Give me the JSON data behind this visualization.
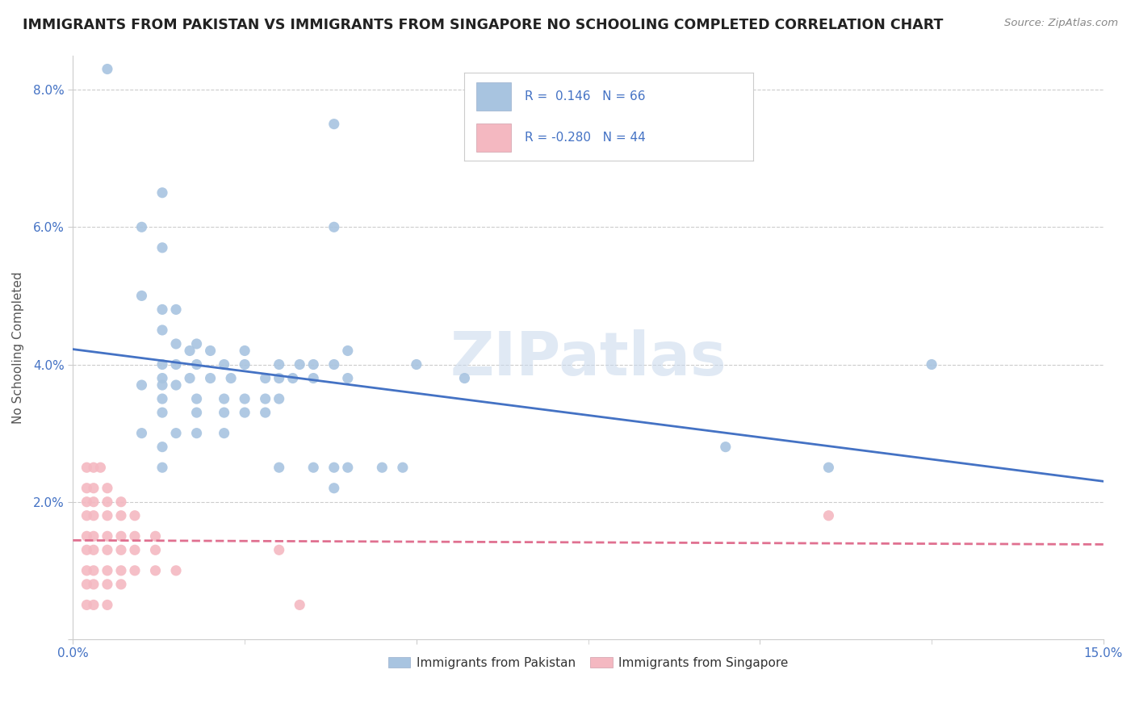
{
  "title": "IMMIGRANTS FROM PAKISTAN VS IMMIGRANTS FROM SINGAPORE NO SCHOOLING COMPLETED CORRELATION CHART",
  "source": "Source: ZipAtlas.com",
  "ylabel": "No Schooling Completed",
  "xlim": [
    0.0,
    0.15
  ],
  "ylim": [
    0.0,
    0.085
  ],
  "pakistan_color": "#a8c4e0",
  "singapore_color": "#f4b8c1",
  "pakistan_line_color": "#4472c4",
  "singapore_line_color": "#e07090",
  "pakistan_r": 0.146,
  "pakistan_n": 66,
  "singapore_r": -0.28,
  "singapore_n": 44,
  "pakistan_points": [
    [
      0.005,
      0.083
    ],
    [
      0.038,
      0.075
    ],
    [
      0.013,
      0.065
    ],
    [
      0.038,
      0.06
    ],
    [
      0.01,
      0.06
    ],
    [
      0.013,
      0.057
    ],
    [
      0.01,
      0.05
    ],
    [
      0.013,
      0.048
    ],
    [
      0.015,
      0.048
    ],
    [
      0.013,
      0.045
    ],
    [
      0.015,
      0.043
    ],
    [
      0.018,
      0.043
    ],
    [
      0.017,
      0.042
    ],
    [
      0.02,
      0.042
    ],
    [
      0.025,
      0.042
    ],
    [
      0.04,
      0.042
    ],
    [
      0.013,
      0.04
    ],
    [
      0.015,
      0.04
    ],
    [
      0.018,
      0.04
    ],
    [
      0.022,
      0.04
    ],
    [
      0.025,
      0.04
    ],
    [
      0.03,
      0.04
    ],
    [
      0.033,
      0.04
    ],
    [
      0.035,
      0.04
    ],
    [
      0.038,
      0.04
    ],
    [
      0.05,
      0.04
    ],
    [
      0.057,
      0.038
    ],
    [
      0.013,
      0.038
    ],
    [
      0.017,
      0.038
    ],
    [
      0.02,
      0.038
    ],
    [
      0.023,
      0.038
    ],
    [
      0.028,
      0.038
    ],
    [
      0.03,
      0.038
    ],
    [
      0.032,
      0.038
    ],
    [
      0.035,
      0.038
    ],
    [
      0.04,
      0.038
    ],
    [
      0.01,
      0.037
    ],
    [
      0.013,
      0.037
    ],
    [
      0.015,
      0.037
    ],
    [
      0.013,
      0.035
    ],
    [
      0.018,
      0.035
    ],
    [
      0.022,
      0.035
    ],
    [
      0.025,
      0.035
    ],
    [
      0.028,
      0.035
    ],
    [
      0.03,
      0.035
    ],
    [
      0.013,
      0.033
    ],
    [
      0.018,
      0.033
    ],
    [
      0.022,
      0.033
    ],
    [
      0.025,
      0.033
    ],
    [
      0.028,
      0.033
    ],
    [
      0.01,
      0.03
    ],
    [
      0.015,
      0.03
    ],
    [
      0.018,
      0.03
    ],
    [
      0.022,
      0.03
    ],
    [
      0.013,
      0.028
    ],
    [
      0.095,
      0.028
    ],
    [
      0.013,
      0.025
    ],
    [
      0.03,
      0.025
    ],
    [
      0.035,
      0.025
    ],
    [
      0.038,
      0.025
    ],
    [
      0.04,
      0.025
    ],
    [
      0.045,
      0.025
    ],
    [
      0.048,
      0.025
    ],
    [
      0.11,
      0.025
    ],
    [
      0.038,
      0.022
    ],
    [
      0.125,
      0.04
    ]
  ],
  "singapore_points": [
    [
      0.002,
      0.025
    ],
    [
      0.003,
      0.025
    ],
    [
      0.004,
      0.025
    ],
    [
      0.002,
      0.022
    ],
    [
      0.003,
      0.022
    ],
    [
      0.005,
      0.022
    ],
    [
      0.002,
      0.02
    ],
    [
      0.003,
      0.02
    ],
    [
      0.005,
      0.02
    ],
    [
      0.007,
      0.02
    ],
    [
      0.002,
      0.018
    ],
    [
      0.003,
      0.018
    ],
    [
      0.005,
      0.018
    ],
    [
      0.007,
      0.018
    ],
    [
      0.009,
      0.018
    ],
    [
      0.002,
      0.015
    ],
    [
      0.003,
      0.015
    ],
    [
      0.005,
      0.015
    ],
    [
      0.007,
      0.015
    ],
    [
      0.009,
      0.015
    ],
    [
      0.012,
      0.015
    ],
    [
      0.002,
      0.013
    ],
    [
      0.003,
      0.013
    ],
    [
      0.005,
      0.013
    ],
    [
      0.007,
      0.013
    ],
    [
      0.009,
      0.013
    ],
    [
      0.012,
      0.013
    ],
    [
      0.002,
      0.01
    ],
    [
      0.003,
      0.01
    ],
    [
      0.005,
      0.01
    ],
    [
      0.007,
      0.01
    ],
    [
      0.009,
      0.01
    ],
    [
      0.012,
      0.01
    ],
    [
      0.015,
      0.01
    ],
    [
      0.002,
      0.008
    ],
    [
      0.003,
      0.008
    ],
    [
      0.005,
      0.008
    ],
    [
      0.007,
      0.008
    ],
    [
      0.002,
      0.005
    ],
    [
      0.003,
      0.005
    ],
    [
      0.005,
      0.005
    ],
    [
      0.033,
      0.005
    ],
    [
      0.11,
      0.018
    ],
    [
      0.03,
      0.013
    ]
  ],
  "background_color": "#ffffff",
  "grid_color": "#cccccc",
  "title_color": "#222222",
  "watermark_text": "ZIPatlas"
}
